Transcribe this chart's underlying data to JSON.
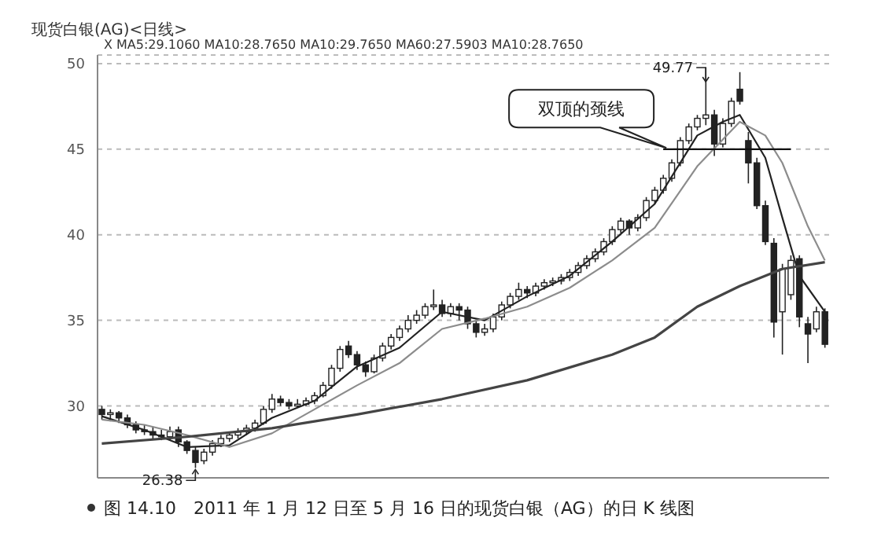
{
  "chart_data": {
    "type": "candlestick",
    "title": "现货白银(AG)<日线>",
    "categories": [
      null,
      null,
      null,
      null,
      null,
      null,
      null,
      null,
      null,
      null,
      null,
      null,
      null,
      null,
      null,
      null,
      null,
      null,
      null,
      null,
      null,
      null,
      null,
      null,
      null,
      null,
      null,
      null,
      null,
      null,
      null,
      null,
      null,
      null,
      null,
      null,
      null,
      null,
      null,
      null,
      null,
      null,
      null,
      null,
      null,
      null,
      null,
      null,
      null,
      null,
      null,
      null,
      null,
      null,
      null,
      null,
      null,
      null,
      null,
      null,
      null,
      null,
      null,
      null,
      null,
      null,
      null,
      null,
      null,
      null,
      null,
      null,
      null,
      null,
      null,
      null,
      null,
      null,
      null,
      null,
      null,
      null,
      null,
      null,
      null,
      null
    ],
    "ohlc": [
      [
        29.8,
        30.0,
        29.2,
        29.5
      ],
      [
        29.5,
        29.8,
        29.1,
        29.6
      ],
      [
        29.6,
        29.7,
        29.0,
        29.3
      ],
      [
        29.3,
        29.5,
        28.7,
        28.9
      ],
      [
        28.9,
        29.1,
        28.4,
        28.6
      ],
      [
        28.6,
        28.9,
        28.3,
        28.5
      ],
      [
        28.5,
        28.8,
        28.0,
        28.3
      ],
      [
        28.3,
        28.6,
        28.0,
        28.2
      ],
      [
        28.2,
        28.8,
        28.0,
        28.5
      ],
      [
        28.6,
        28.8,
        27.6,
        27.9
      ],
      [
        27.9,
        28.0,
        27.2,
        27.4
      ],
      [
        27.4,
        27.6,
        26.38,
        26.7
      ],
      [
        26.8,
        27.5,
        26.6,
        27.3
      ],
      [
        27.3,
        28.0,
        27.1,
        27.8
      ],
      [
        27.8,
        28.3,
        27.6,
        28.1
      ],
      [
        28.1,
        28.5,
        27.9,
        28.3
      ],
      [
        28.3,
        28.7,
        28.1,
        28.5
      ],
      [
        28.5,
        28.9,
        28.3,
        28.7
      ],
      [
        28.7,
        29.2,
        28.5,
        29.0
      ],
      [
        29.0,
        30.0,
        28.9,
        29.8
      ],
      [
        29.8,
        30.7,
        29.6,
        30.4
      ],
      [
        30.4,
        30.6,
        30.0,
        30.2
      ],
      [
        30.2,
        30.4,
        29.8,
        30.0
      ],
      [
        30.0,
        30.4,
        29.9,
        30.1
      ],
      [
        30.1,
        30.5,
        30.0,
        30.3
      ],
      [
        30.3,
        30.8,
        30.1,
        30.6
      ],
      [
        30.6,
        31.4,
        30.5,
        31.2
      ],
      [
        31.2,
        32.4,
        31.0,
        32.2
      ],
      [
        32.2,
        33.5,
        32.0,
        33.3
      ],
      [
        33.5,
        33.8,
        32.8,
        33.0
      ],
      [
        33.0,
        33.2,
        32.1,
        32.4
      ],
      [
        32.4,
        32.6,
        31.7,
        32.0
      ],
      [
        32.0,
        33.0,
        31.9,
        32.8
      ],
      [
        32.8,
        33.7,
        32.6,
        33.5
      ],
      [
        33.5,
        34.2,
        33.3,
        34.0
      ],
      [
        34.0,
        34.7,
        33.8,
        34.5
      ],
      [
        34.5,
        35.3,
        34.3,
        35.0
      ],
      [
        35.0,
        35.6,
        34.8,
        35.3
      ],
      [
        35.3,
        36.0,
        35.1,
        35.8
      ],
      [
        35.8,
        36.8,
        35.6,
        35.9
      ],
      [
        35.9,
        36.2,
        35.2,
        35.4
      ],
      [
        35.4,
        36.0,
        35.2,
        35.8
      ],
      [
        35.8,
        36.0,
        35.0,
        35.6
      ],
      [
        35.6,
        35.8,
        34.5,
        34.8
      ],
      [
        34.8,
        35.0,
        34.0,
        34.3
      ],
      [
        34.3,
        34.8,
        34.1,
        34.5
      ],
      [
        34.5,
        35.4,
        34.3,
        35.2
      ],
      [
        35.2,
        36.1,
        35.0,
        35.9
      ],
      [
        35.9,
        36.6,
        35.7,
        36.4
      ],
      [
        36.4,
        37.2,
        36.2,
        36.8
      ],
      [
        36.8,
        37.0,
        36.3,
        36.6
      ],
      [
        36.6,
        37.2,
        36.4,
        37.0
      ],
      [
        37.0,
        37.4,
        36.8,
        37.2
      ],
      [
        37.2,
        37.5,
        37.0,
        37.3
      ],
      [
        37.3,
        37.7,
        37.1,
        37.5
      ],
      [
        37.5,
        38.0,
        37.3,
        37.8
      ],
      [
        37.8,
        38.4,
        37.6,
        38.2
      ],
      [
        38.2,
        38.8,
        38.0,
        38.6
      ],
      [
        38.6,
        39.2,
        38.4,
        39.0
      ],
      [
        39.0,
        39.8,
        38.8,
        39.6
      ],
      [
        39.6,
        40.5,
        39.4,
        40.3
      ],
      [
        40.3,
        41.0,
        40.1,
        40.8
      ],
      [
        40.8,
        40.9,
        40.0,
        40.4
      ],
      [
        40.4,
        41.2,
        40.2,
        41.0
      ],
      [
        41.0,
        42.2,
        40.8,
        42.0
      ],
      [
        42.0,
        42.8,
        41.8,
        42.6
      ],
      [
        42.6,
        43.5,
        42.4,
        43.3
      ],
      [
        43.3,
        44.4,
        43.1,
        44.2
      ],
      [
        44.2,
        45.7,
        44.0,
        45.5
      ],
      [
        45.5,
        46.5,
        45.3,
        46.3
      ],
      [
        46.3,
        47.0,
        46.1,
        46.8
      ],
      [
        46.8,
        49.77,
        46.4,
        47.0
      ],
      [
        47.0,
        47.3,
        44.6,
        45.3
      ],
      [
        45.3,
        46.8,
        45.1,
        46.5
      ],
      [
        46.5,
        48.0,
        46.3,
        47.8
      ],
      [
        48.5,
        49.5,
        47.6,
        47.8
      ],
      [
        45.5,
        46.0,
        43.0,
        44.2
      ],
      [
        44.2,
        44.5,
        41.5,
        41.7
      ],
      [
        41.7,
        42.0,
        39.4,
        39.6
      ],
      [
        39.5,
        39.8,
        34.0,
        34.9
      ],
      [
        35.5,
        38.3,
        33.0,
        38.0
      ],
      [
        36.5,
        38.8,
        36.2,
        38.5
      ],
      [
        38.6,
        38.8,
        34.6,
        35.2
      ],
      [
        34.8,
        35.2,
        32.5,
        34.2
      ],
      [
        34.5,
        35.8,
        34.3,
        35.5
      ],
      [
        35.5,
        35.7,
        33.4,
        33.6
      ]
    ],
    "series": [
      {
        "type": "line",
        "color": "#222222",
        "values": [
          29.4,
          null,
          null,
          null,
          null,
          28.6,
          null,
          null,
          null,
          null,
          27.6,
          null,
          null,
          null,
          null,
          27.7,
          null,
          null,
          null,
          null,
          29.3,
          null,
          null,
          null,
          null,
          30.3,
          null,
          null,
          null,
          null,
          32.3,
          null,
          null,
          null,
          null,
          33.4,
          null,
          null,
          null,
          null,
          35.5,
          null,
          null,
          null,
          null,
          35.0,
          null,
          null,
          null,
          null,
          36.4,
          null,
          null,
          null,
          null,
          37.6,
          null,
          null,
          null,
          null,
          39.6,
          null,
          null,
          null,
          null,
          41.8,
          null,
          null,
          null,
          null,
          45.8,
          null,
          null,
          46.6,
          null,
          47.0,
          null,
          null,
          44.5,
          null,
          41.0,
          null,
          37.6,
          null,
          null,
          35.5
        ]
      },
      {
        "type": "line",
        "color": "#8c8c8c",
        "values": [
          29.2,
          null,
          null,
          null,
          null,
          28.9,
          null,
          null,
          null,
          null,
          28.3,
          null,
          null,
          null,
          null,
          27.6,
          null,
          null,
          null,
          null,
          28.4,
          null,
          null,
          null,
          null,
          29.8,
          null,
          null,
          null,
          null,
          31.2,
          null,
          null,
          null,
          null,
          32.5,
          null,
          null,
          null,
          null,
          34.5,
          null,
          null,
          null,
          null,
          35.1,
          null,
          null,
          null,
          null,
          35.8,
          null,
          null,
          null,
          null,
          36.9,
          null,
          null,
          null,
          null,
          38.5,
          null,
          null,
          null,
          null,
          40.4,
          null,
          null,
          null,
          null,
          44.0,
          null,
          null,
          null,
          null,
          46.6,
          null,
          null,
          45.8,
          null,
          44.2,
          null,
          null,
          40.5,
          null,
          38.5
        ]
      },
      {
        "type": "line",
        "color": "#444444",
        "values": [
          27.8,
          null,
          null,
          null,
          null,
          null,
          null,
          null,
          null,
          null,
          28.2,
          null,
          null,
          null,
          null,
          null,
          null,
          null,
          null,
          null,
          28.7,
          null,
          null,
          null,
          null,
          null,
          null,
          null,
          null,
          null,
          29.5,
          null,
          null,
          null,
          null,
          null,
          null,
          null,
          null,
          null,
          30.4,
          null,
          null,
          null,
          null,
          null,
          null,
          null,
          null,
          null,
          31.5,
          null,
          null,
          null,
          null,
          null,
          null,
          null,
          null,
          null,
          33.0,
          null,
          null,
          null,
          null,
          34.0,
          null,
          null,
          null,
          null,
          35.8,
          null,
          null,
          null,
          null,
          37.0,
          null,
          null,
          null,
          null,
          38.0,
          null,
          null,
          null,
          null,
          38.4
        ]
      },
      {
        "type": "line",
        "color": "#111111",
        "values": [
          null,
          null,
          null,
          null,
          null,
          null,
          null,
          null,
          null,
          null,
          null,
          null,
          null,
          null,
          null,
          null,
          null,
          null,
          null,
          null,
          null,
          null,
          null,
          null,
          null,
          null,
          null,
          null,
          null,
          null,
          null,
          null,
          null,
          null,
          null,
          null,
          null,
          null,
          null,
          null,
          null,
          null,
          null,
          null,
          null,
          null,
          null,
          null,
          null,
          null,
          null,
          null,
          null,
          null,
          null,
          null,
          null,
          null,
          null,
          null,
          null,
          null,
          null,
          null,
          null,
          null,
          45,
          45,
          45,
          45,
          45,
          45,
          45,
          45,
          45,
          45,
          45,
          45,
          45,
          45,
          45,
          45,
          null,
          null,
          null,
          null
        ]
      }
    ],
    "ylim": [
      25.8,
      50.5
    ],
    "yticks": [
      30,
      35,
      40,
      45,
      50
    ],
    "grid": "y",
    "tick_labels": "y",
    "marker": "none",
    "line_style": "solid",
    "annotations": [
      "X MA5:29.1060 MA10:28.7650 MA10:29.7650 MA60:27.5903 MA10:28.7650",
      "49.77",
      "26.38",
      "双顶的颈线",
      "图 14.10　2011 年 1 月 12 日至 5 月 16 日的现货白银（AG）的日 K 线图"
    ]
  }
}
